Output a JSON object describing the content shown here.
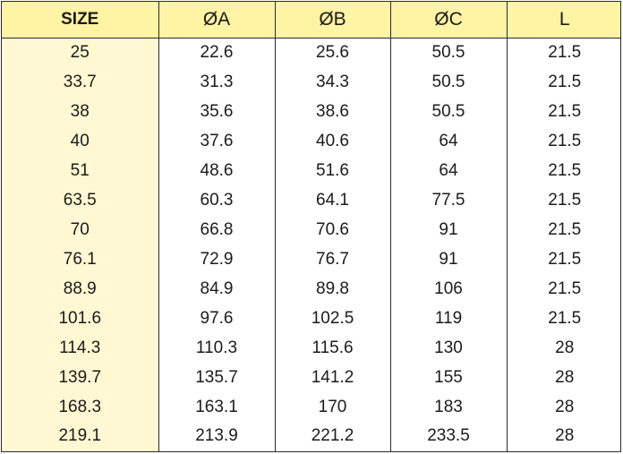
{
  "table": {
    "headers": [
      "SIZE",
      "ØA",
      "ØB",
      "ØC",
      "L"
    ],
    "rows": [
      [
        "25",
        "22.6",
        "25.6",
        "50.5",
        "21.5"
      ],
      [
        "33.7",
        "31.3",
        "34.3",
        "50.5",
        "21.5"
      ],
      [
        "38",
        "35.6",
        "38.6",
        "50.5",
        "21.5"
      ],
      [
        "40",
        "37.6",
        "40.6",
        "64",
        "21.5"
      ],
      [
        "51",
        "48.6",
        "51.6",
        "64",
        "21.5"
      ],
      [
        "63.5",
        "60.3",
        "64.1",
        "77.5",
        "21.5"
      ],
      [
        "70",
        "66.8",
        "70.6",
        "91",
        "21.5"
      ],
      [
        "76.1",
        "72.9",
        "76.7",
        "91",
        "21.5"
      ],
      [
        "88.9",
        "84.9",
        "89.8",
        "106",
        "21.5"
      ],
      [
        "101.6",
        "97.6",
        "102.5",
        "119",
        "21.5"
      ],
      [
        "114.3",
        "110.3",
        "115.6",
        "130",
        "28"
      ],
      [
        "139.7",
        "135.7",
        "141.2",
        "155",
        "28"
      ],
      [
        "168.3",
        "163.1",
        "170",
        "183",
        "28"
      ],
      [
        "219.1",
        "213.9",
        "221.2",
        "233.5",
        "28"
      ]
    ]
  },
  "colors": {
    "header_background": "#fff3a4",
    "size_column_background": "#fff8d2",
    "border": "#2b2b2b",
    "text": "#1b1b1b"
  }
}
